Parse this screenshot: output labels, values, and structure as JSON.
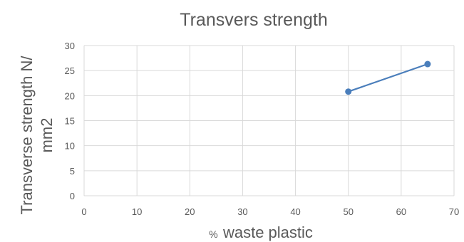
{
  "chart_data": {
    "type": "scatter",
    "title": "Transvers strength",
    "xlabel": "waste plastic",
    "xlabel_prefix": "%",
    "ylabel_lines": [
      "Transverse strength N/",
      "mm2"
    ],
    "xlim": [
      0,
      70
    ],
    "ylim": [
      0,
      30
    ],
    "x_ticks": [
      0,
      10,
      20,
      30,
      40,
      50,
      60,
      70
    ],
    "y_ticks": [
      0,
      5,
      10,
      15,
      20,
      25,
      30
    ],
    "grid": true,
    "legend": "none",
    "series": [
      {
        "x": [
          50,
          65
        ],
        "y": [
          20.8,
          26.3
        ],
        "color": "#4a7ebb",
        "markers": true,
        "line": true
      }
    ]
  }
}
